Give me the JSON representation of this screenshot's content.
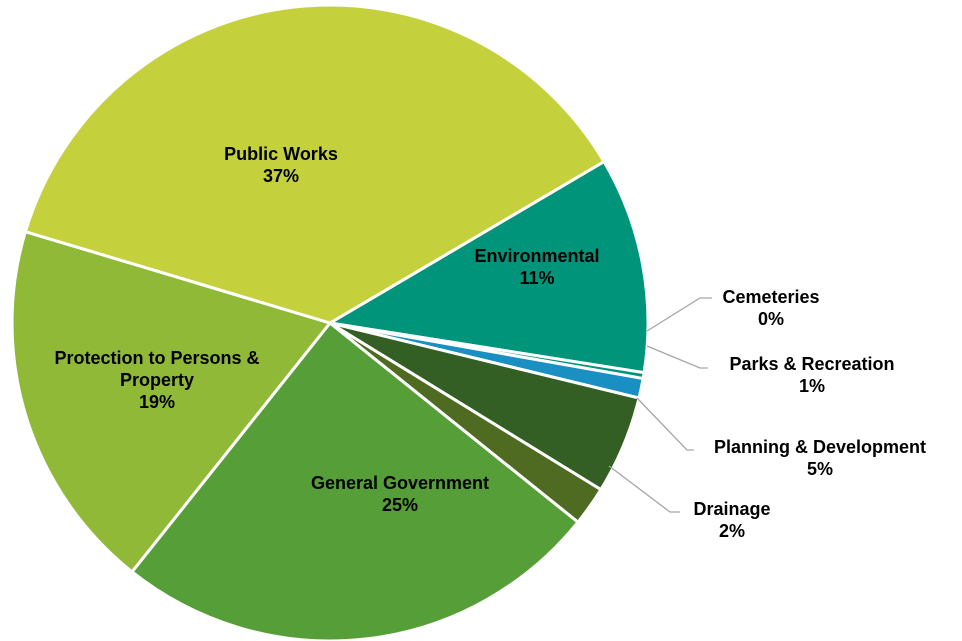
{
  "chart_data": {
    "type": "pie",
    "title": "",
    "slices": [
      {
        "name": "Environmental",
        "value": 11,
        "pct_label": "11%",
        "color": "#00957a"
      },
      {
        "name": "Cemeteries",
        "value": 0.3,
        "pct_label": "0%",
        "color": "#00957a"
      },
      {
        "name": "Parks & Recreation",
        "value": 1,
        "pct_label": "1%",
        "color": "#1a8fc2"
      },
      {
        "name": "Planning & Development",
        "value": 5,
        "pct_label": "5%",
        "color": "#335f25"
      },
      {
        "name": "Drainage",
        "value": 2,
        "pct_label": "2%",
        "color": "#4f6b21"
      },
      {
        "name": "General Government",
        "value": 25,
        "pct_label": "25%",
        "color": "#569f38"
      },
      {
        "name": "Protection to Persons & Property",
        "value": 19,
        "pct_label": "19%",
        "color": "#8fb937"
      },
      {
        "name": "Public Works",
        "value": 37,
        "pct_label": "37%",
        "color": "#c4d13d"
      }
    ],
    "labels": [
      {
        "slice": "Public Works",
        "lines": [
          "Public Works"
        ],
        "pct": "37%"
      },
      {
        "slice": "Environmental",
        "lines": [
          "Environmental"
        ],
        "pct": "11%"
      },
      {
        "slice": "Cemeteries",
        "lines": [
          "Cemeteries"
        ],
        "pct": "0%"
      },
      {
        "slice": "Parks & Recreation",
        "lines": [
          "Parks & Recreation"
        ],
        "pct": "1%"
      },
      {
        "slice": "Planning & Development",
        "lines": [
          "Planning & Development"
        ],
        "pct": "5%"
      },
      {
        "slice": "Drainage",
        "lines": [
          "Drainage"
        ],
        "pct": "2%"
      },
      {
        "slice": "General Government",
        "lines": [
          "General Government"
        ],
        "pct": "25%"
      },
      {
        "slice": "Protection to Persons & Property",
        "lines": [
          "Protection to Persons &",
          "Property"
        ],
        "pct": "19%"
      }
    ]
  }
}
